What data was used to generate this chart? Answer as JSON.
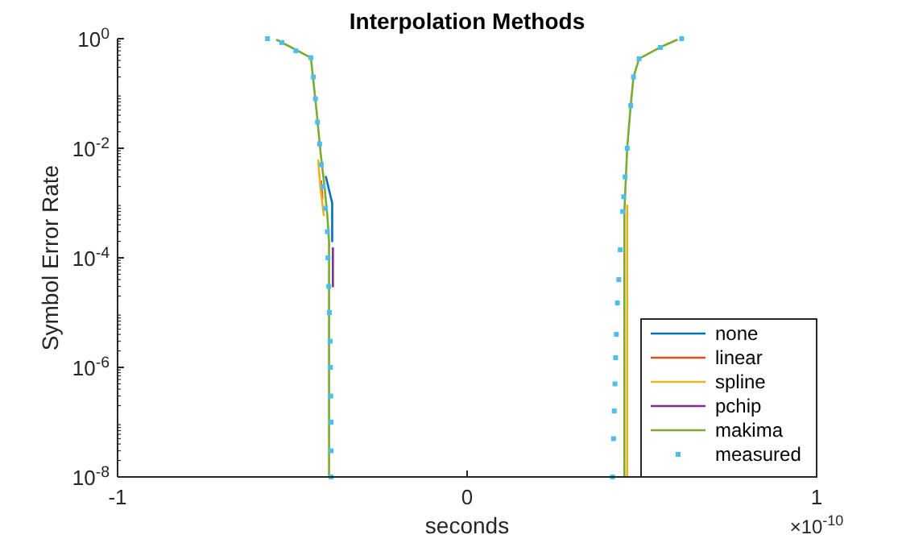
{
  "chart_data": {
    "type": "line",
    "title": "Interpolation Methods",
    "xlabel": "seconds",
    "ylabel": "Symbol Error Rate",
    "xlim": [
      -1,
      1
    ],
    "xticks": [
      -1,
      0,
      1
    ],
    "ylim": [
      1e-08,
      1
    ],
    "log": "y",
    "yticks": [
      {
        "value": 1e-08,
        "label": "10$^{-8}$"
      },
      {
        "value": 1e-06,
        "label": "10$^{-6}$"
      },
      {
        "value": 0.0001,
        "label": "10$^{-4}$"
      },
      {
        "value": 0.01,
        "label": "10$^{-2}$"
      },
      {
        "value": 1,
        "label": "10$^{0}$"
      }
    ],
    "grid": false,
    "legend": "bottom right",
    "line_style": "solid",
    "annotations": [
      "×10$^{-10}$"
    ],
    "series": [
      {
        "name": "none",
        "color": "#0072bd",
        "x": [
          -0.404,
          -0.386,
          -0.386
        ],
        "values": [
          0.003,
          0.001,
          0.0002
        ]
      },
      {
        "name": "linear",
        "color": "#d95319",
        "x": [
          -0.418,
          -0.414
        ],
        "values": [
          0.0025,
          0.0012
        ]
      },
      {
        "name": "spline",
        "color": "#edb120",
        "x": [
          -0.426,
          -0.42,
          -0.41,
          null,
          0.458,
          0.458
        ],
        "values": [
          0.006,
          0.002,
          0.0006,
          null,
          1e-08,
          0.0009
        ]
      },
      {
        "name": "pchip",
        "color": "#7e2f8e",
        "x": [
          -0.384,
          -0.384
        ],
        "values": [
          0.00015,
          3e-05
        ]
      },
      {
        "name": "makima",
        "color": "#77ac30",
        "x": [
          -0.544,
          -0.447,
          -0.431,
          -0.419,
          -0.408,
          -0.4,
          -0.395,
          -0.395,
          null,
          0.45,
          0.45,
          0.458,
          0.468,
          0.476,
          0.492,
          0.553,
          0.6
        ],
        "values": [
          0.95,
          0.45,
          0.05,
          0.008,
          0.002,
          0.0006,
          0.0002,
          1e-08,
          null,
          1e-08,
          0.0007,
          0.01,
          0.06,
          0.2,
          0.43,
          0.7,
          0.95
        ]
      },
      {
        "name": "measured",
        "type": "scatter",
        "marker": "square",
        "color": "#4dbeee",
        "x": [
          -0.571,
          -0.53,
          -0.49,
          -0.447,
          -0.44,
          -0.434,
          -0.428,
          -0.422,
          -0.417,
          -0.412,
          -0.405,
          -0.4,
          -0.398,
          -0.396,
          -0.394,
          -0.392,
          -0.391,
          -0.39,
          -0.389,
          -0.389,
          -0.389,
          0.416,
          0.419,
          0.421,
          0.423,
          0.425,
          0.427,
          0.43,
          0.434,
          0.438,
          0.445,
          0.448,
          0.452,
          0.458,
          0.468,
          0.476,
          0.492,
          0.553,
          0.614
        ],
        "values": [
          1,
          0.85,
          0.6,
          0.45,
          0.2,
          0.08,
          0.03,
          0.012,
          0.005,
          0.002,
          0.0008,
          0.0003,
          0.0001,
          3e-05,
          1e-05,
          3e-06,
          1e-06,
          3e-07,
          1e-07,
          3e-08,
          1e-08,
          1e-08,
          5e-08,
          1.6e-07,
          5e-07,
          1.5e-06,
          4e-06,
          1.5e-05,
          4e-05,
          0.00014,
          0.0007,
          0.0013,
          0.003,
          0.01,
          0.06,
          0.2,
          0.43,
          0.69,
          1
        ]
      }
    ]
  }
}
